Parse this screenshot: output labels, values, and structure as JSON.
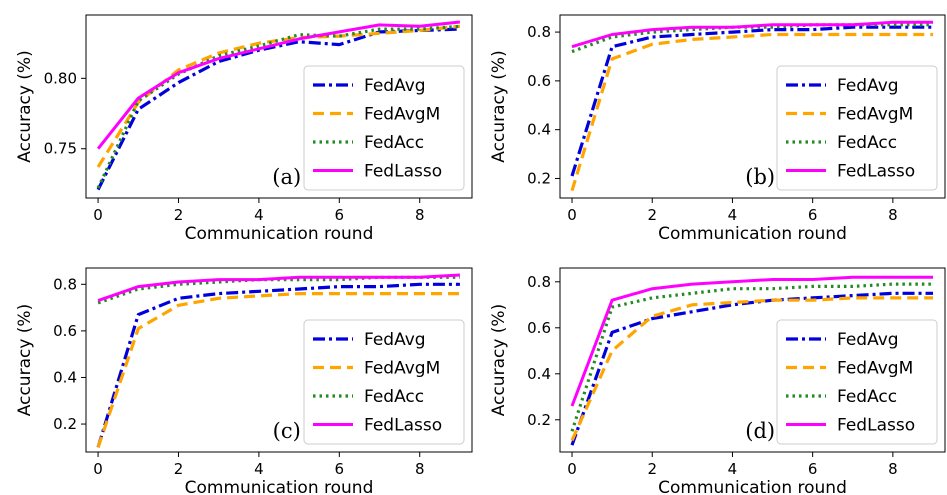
{
  "chart_data": [
    {
      "type": "line",
      "panel_label": "(a)",
      "xlabel": "Communication round",
      "ylabel": "Accuracy (%)",
      "x": [
        0,
        1,
        2,
        3,
        4,
        5,
        6,
        7,
        8,
        9
      ],
      "xlim": [
        -0.3,
        9.3
      ],
      "ylim": [
        0.715,
        0.845
      ],
      "xticks": [
        0,
        2,
        4,
        6,
        8
      ],
      "yticks": [
        0.75,
        0.8
      ],
      "ytick_labels": [
        "0.75",
        "0.80"
      ],
      "legend_position": "lower-right",
      "grid": false,
      "series": [
        {
          "name": "FedAvg",
          "color": "#0000dd",
          "dash": "dashdot",
          "values": [
            0.721,
            0.778,
            0.797,
            0.812,
            0.82,
            0.826,
            0.824,
            0.833,
            0.834,
            0.835
          ]
        },
        {
          "name": "FedAvgM",
          "color": "#ffa500",
          "dash": "dashed",
          "values": [
            0.737,
            0.783,
            0.806,
            0.818,
            0.825,
            0.829,
            0.83,
            0.832,
            0.834,
            0.837
          ]
        },
        {
          "name": "FedAcc",
          "color": "#228b22",
          "dash": "dotted",
          "values": [
            0.722,
            0.784,
            0.803,
            0.816,
            0.823,
            0.831,
            0.83,
            0.835,
            0.835,
            0.837
          ]
        },
        {
          "name": "FedLasso",
          "color": "#ff00ff",
          "dash": "solid",
          "values": [
            0.75,
            0.786,
            0.804,
            0.814,
            0.821,
            0.828,
            0.833,
            0.838,
            0.837,
            0.84
          ]
        }
      ]
    },
    {
      "type": "line",
      "panel_label": "(b)",
      "xlabel": "Communication round",
      "ylabel": "Accuracy (%)",
      "x": [
        0,
        1,
        2,
        3,
        4,
        5,
        6,
        7,
        8,
        9
      ],
      "xlim": [
        -0.3,
        9.3
      ],
      "ylim": [
        0.12,
        0.87
      ],
      "xticks": [
        0,
        2,
        4,
        6,
        8
      ],
      "yticks": [
        0.2,
        0.4,
        0.6,
        0.8
      ],
      "ytick_labels": [
        "0.2",
        "0.4",
        "0.6",
        "0.8"
      ],
      "legend_position": "lower-right",
      "grid": false,
      "series": [
        {
          "name": "FedAvg",
          "color": "#0000dd",
          "dash": "dashdot",
          "values": [
            0.21,
            0.74,
            0.78,
            0.79,
            0.8,
            0.81,
            0.81,
            0.82,
            0.82,
            0.82
          ]
        },
        {
          "name": "FedAvgM",
          "color": "#ffa500",
          "dash": "dashed",
          "values": [
            0.15,
            0.69,
            0.75,
            0.77,
            0.78,
            0.79,
            0.79,
            0.79,
            0.79,
            0.79
          ]
        },
        {
          "name": "FedAcc",
          "color": "#228b22",
          "dash": "dotted",
          "values": [
            0.72,
            0.78,
            0.8,
            0.81,
            0.82,
            0.82,
            0.83,
            0.83,
            0.83,
            0.83
          ]
        },
        {
          "name": "FedLasso",
          "color": "#ff00ff",
          "dash": "solid",
          "values": [
            0.74,
            0.79,
            0.81,
            0.82,
            0.82,
            0.83,
            0.83,
            0.83,
            0.84,
            0.84
          ]
        }
      ]
    },
    {
      "type": "line",
      "panel_label": "(c)",
      "xlabel": "Communication round",
      "ylabel": "Accuracy (%)",
      "x": [
        0,
        1,
        2,
        3,
        4,
        5,
        6,
        7,
        8,
        9
      ],
      "xlim": [
        -0.3,
        9.3
      ],
      "ylim": [
        0.08,
        0.87
      ],
      "xticks": [
        0,
        2,
        4,
        6,
        8
      ],
      "yticks": [
        0.2,
        0.4,
        0.6,
        0.8
      ],
      "ytick_labels": [
        "0.2",
        "0.4",
        "0.6",
        "0.8"
      ],
      "legend_position": "lower-right",
      "grid": false,
      "series": [
        {
          "name": "FedAvg",
          "color": "#0000dd",
          "dash": "dashdot",
          "values": [
            0.1,
            0.67,
            0.74,
            0.76,
            0.77,
            0.78,
            0.79,
            0.79,
            0.8,
            0.8
          ]
        },
        {
          "name": "FedAvgM",
          "color": "#ffa500",
          "dash": "dashed",
          "values": [
            0.1,
            0.61,
            0.71,
            0.74,
            0.75,
            0.76,
            0.76,
            0.76,
            0.76,
            0.76
          ]
        },
        {
          "name": "FedAcc",
          "color": "#228b22",
          "dash": "dotted",
          "values": [
            0.72,
            0.78,
            0.8,
            0.81,
            0.82,
            0.82,
            0.82,
            0.83,
            0.83,
            0.83
          ]
        },
        {
          "name": "FedLasso",
          "color": "#ff00ff",
          "dash": "solid",
          "values": [
            0.73,
            0.79,
            0.81,
            0.82,
            0.82,
            0.83,
            0.83,
            0.83,
            0.83,
            0.84
          ]
        }
      ]
    },
    {
      "type": "line",
      "panel_label": "(d)",
      "xlabel": "Communication round",
      "ylabel": "Accuracy (%)",
      "x": [
        0,
        1,
        2,
        3,
        4,
        5,
        6,
        7,
        8,
        9
      ],
      "xlim": [
        -0.3,
        9.3
      ],
      "ylim": [
        0.06,
        0.86
      ],
      "xticks": [
        0,
        2,
        4,
        6,
        8
      ],
      "yticks": [
        0.2,
        0.4,
        0.6,
        0.8
      ],
      "ytick_labels": [
        "0.2",
        "0.4",
        "0.6",
        "0.8"
      ],
      "legend_position": "lower-right",
      "grid": false,
      "series": [
        {
          "name": "FedAvg",
          "color": "#0000dd",
          "dash": "dashdot",
          "values": [
            0.09,
            0.58,
            0.64,
            0.67,
            0.7,
            0.72,
            0.73,
            0.74,
            0.75,
            0.75
          ]
        },
        {
          "name": "FedAvgM",
          "color": "#ffa500",
          "dash": "dashed",
          "values": [
            0.11,
            0.5,
            0.65,
            0.7,
            0.71,
            0.72,
            0.72,
            0.73,
            0.73,
            0.73
          ]
        },
        {
          "name": "FedAcc",
          "color": "#228b22",
          "dash": "dotted",
          "values": [
            0.15,
            0.69,
            0.73,
            0.75,
            0.77,
            0.77,
            0.78,
            0.78,
            0.79,
            0.79
          ]
        },
        {
          "name": "FedLasso",
          "color": "#ff00ff",
          "dash": "solid",
          "values": [
            0.26,
            0.72,
            0.77,
            0.79,
            0.8,
            0.81,
            0.81,
            0.82,
            0.82,
            0.82
          ]
        }
      ]
    }
  ]
}
